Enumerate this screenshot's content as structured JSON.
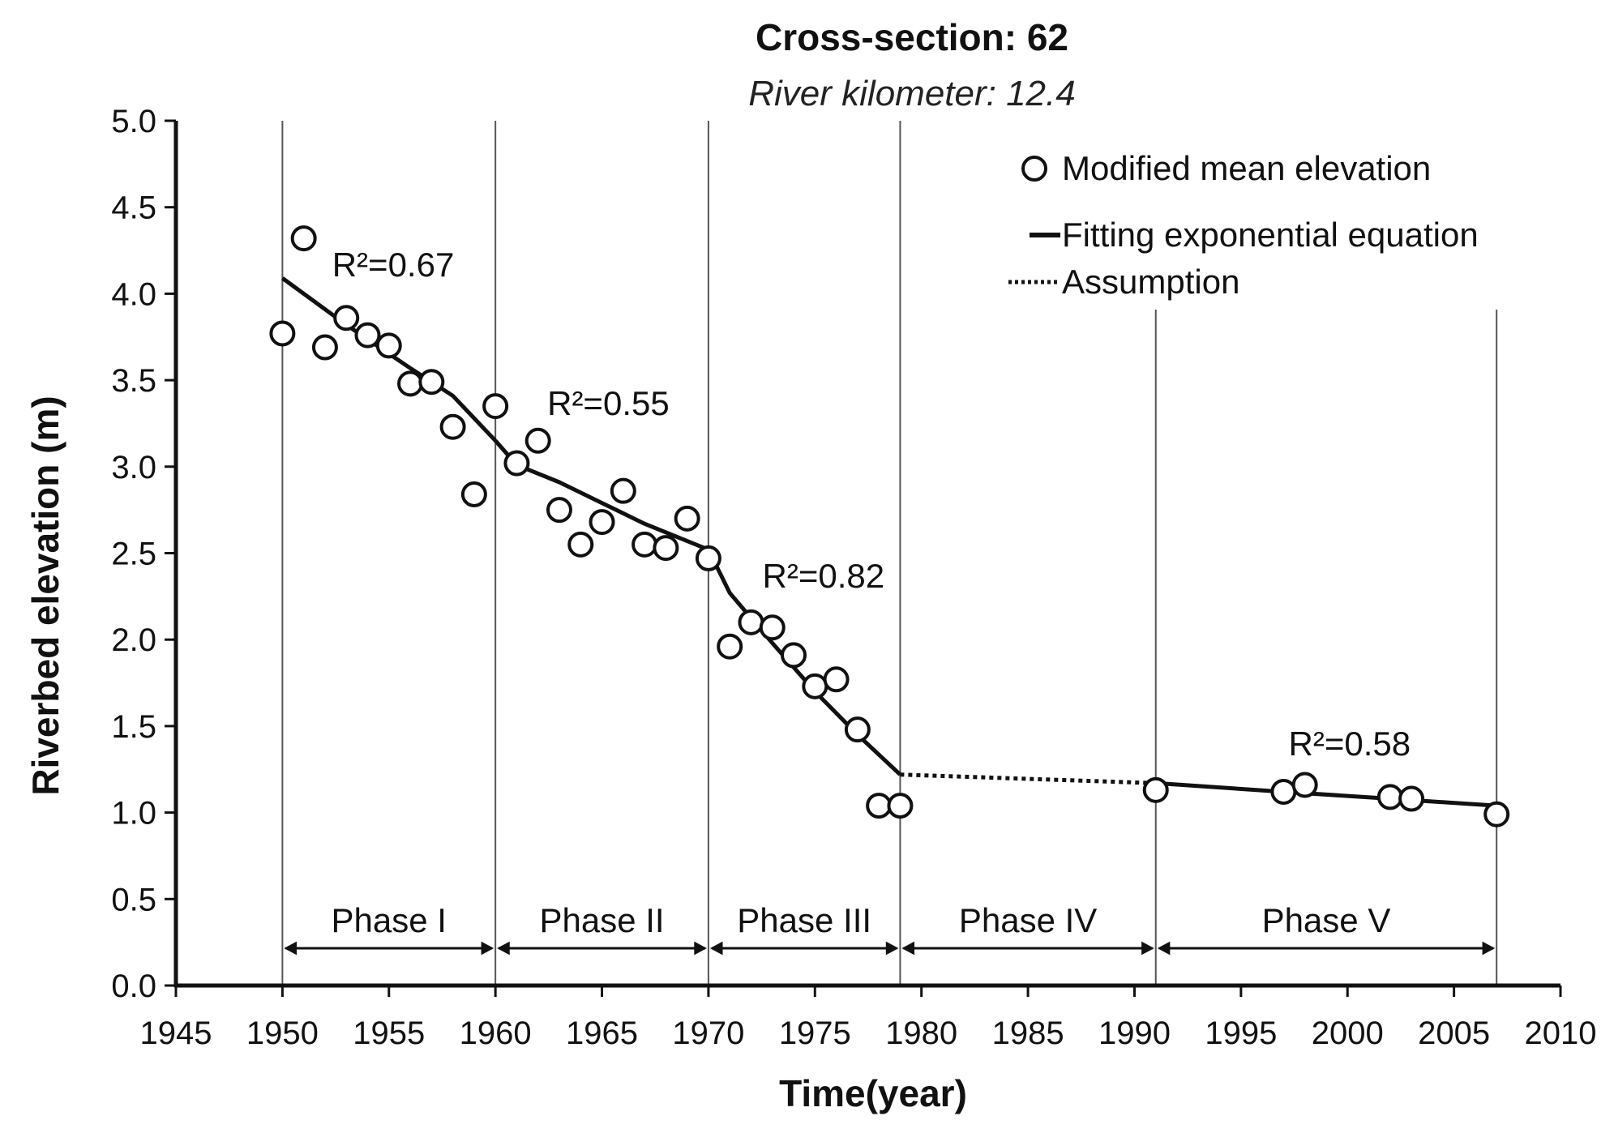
{
  "chart_data": {
    "type": "scatter",
    "title": "Cross-section: 62",
    "subtitle": "River kilometer: 12.4",
    "xlabel": "Time(year)",
    "ylabel": "Riverbed elevation (m)",
    "xlim": [
      1945,
      2010
    ],
    "ylim": [
      0.0,
      5.0
    ],
    "x_ticks": [
      1945,
      1950,
      1955,
      1960,
      1965,
      1970,
      1975,
      1980,
      1985,
      1990,
      1995,
      2000,
      2005,
      2010
    ],
    "x_tick_labels": [
      "1945",
      "1950",
      "1955",
      "1960",
      "1965",
      "1970",
      "1975",
      "1980",
      "1985",
      "1990",
      "1995",
      "2000",
      "2005",
      "2010"
    ],
    "y_ticks": [
      0.0,
      0.5,
      1.0,
      1.5,
      2.0,
      2.5,
      3.0,
      3.5,
      4.0,
      4.5,
      5.0
    ],
    "y_tick_labels": [
      "0.0",
      "0.5",
      "1.0",
      "1.5",
      "2.0",
      "2.5",
      "3.0",
      "3.5",
      "4.0",
      "4.5",
      "5.0"
    ],
    "grid": false,
    "legend_position": "top-right",
    "legend": [
      {
        "label": "Modified mean elevation",
        "style": "open-circle"
      },
      {
        "label": "Fitting exponential equation",
        "style": "solid-line"
      },
      {
        "label": "Assumption",
        "style": "dotted-line"
      }
    ],
    "series": [
      {
        "name": "Modified mean elevation",
        "style": "open-circle",
        "points": [
          [
            1950,
            3.77
          ],
          [
            1951,
            4.32
          ],
          [
            1952,
            3.69
          ],
          [
            1953,
            3.86
          ],
          [
            1954,
            3.76
          ],
          [
            1955,
            3.7
          ],
          [
            1956,
            3.48
          ],
          [
            1957,
            3.49
          ],
          [
            1958,
            3.23
          ],
          [
            1959,
            2.84
          ],
          [
            1960,
            3.35
          ],
          [
            1961,
            3.02
          ],
          [
            1962,
            3.15
          ],
          [
            1963,
            2.75
          ],
          [
            1964,
            2.55
          ],
          [
            1965,
            2.68
          ],
          [
            1966,
            2.86
          ],
          [
            1967,
            2.55
          ],
          [
            1968,
            2.53
          ],
          [
            1969,
            2.7
          ],
          [
            1970,
            2.47
          ],
          [
            1971,
            1.96
          ],
          [
            1972,
            2.1
          ],
          [
            1973,
            2.07
          ],
          [
            1974,
            1.91
          ],
          [
            1975,
            1.73
          ],
          [
            1976,
            1.77
          ],
          [
            1977,
            1.48
          ],
          [
            1978,
            1.04
          ],
          [
            1979,
            1.04
          ],
          [
            1991,
            1.13
          ],
          [
            1997,
            1.12
          ],
          [
            1998,
            1.16
          ],
          [
            2002,
            1.09
          ],
          [
            2003,
            1.08
          ],
          [
            2007,
            0.99
          ]
        ]
      },
      {
        "name": "Fitting exponential equation",
        "style": "solid-line",
        "segments": [
          [
            [
              1950,
              4.09
            ],
            [
              1953,
              3.82
            ],
            [
              1956,
              3.57
            ],
            [
              1958,
              3.41
            ],
            [
              1960,
              3.15
            ]
          ],
          [
            [
              1960,
              3.15
            ],
            [
              1961,
              3.01
            ],
            [
              1963,
              2.91
            ],
            [
              1965,
              2.79
            ],
            [
              1967,
              2.67
            ],
            [
              1970,
              2.52
            ]
          ],
          [
            [
              1970,
              2.52
            ],
            [
              1971,
              2.27
            ],
            [
              1973,
              1.98
            ],
            [
              1975,
              1.7
            ],
            [
              1977,
              1.45
            ],
            [
              1979,
              1.22
            ]
          ],
          [
            [
              1991,
              1.17
            ],
            [
              1997,
              1.12
            ],
            [
              2002,
              1.08
            ],
            [
              2007,
              1.04
            ]
          ]
        ]
      },
      {
        "name": "Assumption",
        "style": "dotted-line",
        "segments": [
          [
            [
              1979,
              1.22
            ],
            [
              1991,
              1.17
            ]
          ]
        ]
      }
    ],
    "r_squared_annotations": [
      {
        "text": "R²=0.67",
        "x": 1955.2,
        "y": 4.1
      },
      {
        "text": "R²=0.55",
        "x": 1965.3,
        "y": 3.3
      },
      {
        "text": "R²=0.82",
        "x": 1975.4,
        "y": 2.3
      },
      {
        "text": "R²=0.58",
        "x": 2000.1,
        "y": 1.33
      }
    ],
    "phase_boundaries": [
      1950,
      1960,
      1970,
      1979,
      1991,
      2007
    ],
    "phases": [
      {
        "label": "Phase I",
        "start": 1950,
        "end": 1960
      },
      {
        "label": "Phase II",
        "start": 1960,
        "end": 1970
      },
      {
        "label": "Phase III",
        "start": 1970,
        "end": 1979
      },
      {
        "label": "Phase IV",
        "start": 1979,
        "end": 1991
      },
      {
        "label": "Phase V",
        "start": 1991,
        "end": 2007
      }
    ],
    "colors": {
      "ink": "#111111",
      "background": "#ffffff",
      "grid_line": "#555555"
    }
  }
}
